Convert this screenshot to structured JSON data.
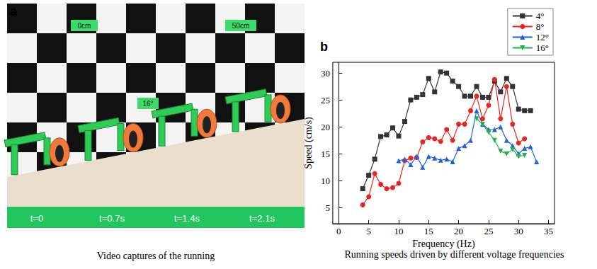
{
  "panel_a": {
    "label": "a",
    "caption": "Video captures of the running",
    "tags": [
      "0cm",
      "50cm",
      "16°"
    ],
    "times": [
      "t=0",
      "t=0.7s",
      "t=1.4s",
      "t=2.1s"
    ]
  },
  "panel_b": {
    "label": "b",
    "caption": "Running speeds driven by different voltage frequencies"
  },
  "chart_data": {
    "type": "line",
    "x_label": "Frequency (Hz)",
    "y_label": "Speed (cm/s)",
    "xlim": [
      -1,
      36
    ],
    "xticks": [
      0,
      5,
      10,
      15,
      20,
      25,
      30,
      35
    ],
    "ylim": [
      2,
      32
    ],
    "yticks": [
      5,
      10,
      15,
      20,
      25,
      30
    ],
    "grid": false,
    "legend": "top-right",
    "series": [
      {
        "name": "4°",
        "color": "#333333",
        "marker": "square",
        "x": [
          4,
          5,
          6,
          7,
          8,
          9,
          10,
          11,
          12,
          13,
          14,
          15,
          16,
          17,
          18,
          19,
          20,
          21,
          22,
          23,
          24,
          25,
          26,
          27,
          28,
          29,
          30,
          31,
          32
        ],
        "values": [
          8.5,
          11,
          14,
          18.2,
          18.5,
          19.8,
          18.3,
          21,
          25,
          25.5,
          26,
          29,
          26.5,
          30.2,
          30,
          28.5,
          27.5,
          25.7,
          25.7,
          27.5,
          25.5,
          25.5,
          28.5,
          26.5,
          29,
          27.5,
          23.3,
          23,
          23
        ]
      },
      {
        "name": "8°",
        "color": "#e8251f",
        "marker": "circle",
        "x": [
          4,
          5,
          6,
          7,
          8,
          9,
          10,
          11,
          12,
          13,
          14,
          15,
          16,
          17,
          18,
          19,
          20,
          21,
          22,
          23,
          24,
          25,
          26,
          27,
          28,
          29,
          30,
          31
        ],
        "values": [
          5.5,
          7,
          11.3,
          9.3,
          8.5,
          8.7,
          9.5,
          13.7,
          14.2,
          14.3,
          17.2,
          18,
          17.8,
          17.3,
          19.5,
          17.5,
          20.5,
          20.5,
          23,
          25.7,
          21.5,
          24,
          28.8,
          21.5,
          27.5,
          20.5,
          17,
          17.8
        ]
      },
      {
        "name": "12°",
        "color": "#1f5fe0",
        "marker": "triangle",
        "x": [
          10,
          11,
          12,
          13,
          14,
          15,
          16,
          17,
          18,
          19,
          20,
          21,
          22,
          23,
          24,
          25,
          26,
          27,
          28,
          29,
          30,
          31,
          32,
          33
        ],
        "values": [
          13.7,
          14,
          13,
          14.5,
          12.5,
          14.5,
          14.2,
          13.8,
          14,
          13.5,
          16,
          16.5,
          17.5,
          23,
          20.5,
          19.5,
          19.5,
          20,
          17.5,
          16.5,
          15,
          16,
          16.3,
          13.5
        ]
      },
      {
        "name": "16°",
        "color": "#22b24c",
        "marker": "triangle_down",
        "x": [
          23,
          24,
          25,
          26,
          27,
          28,
          29,
          30,
          31
        ],
        "values": [
          21.5,
          20.5,
          19,
          17.5,
          15.5,
          15,
          15.8,
          14.5,
          14.7
        ]
      }
    ]
  }
}
